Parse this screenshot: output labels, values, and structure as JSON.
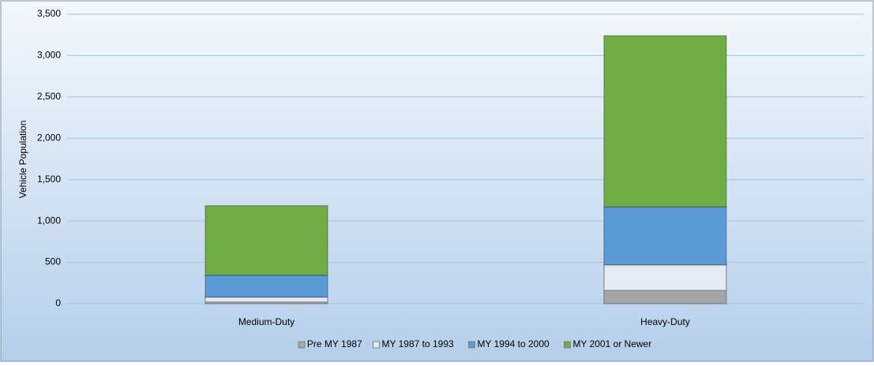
{
  "chart_data": {
    "type": "stacked_bar",
    "y_label": "Vehicle Population",
    "categories": [
      "Medium-Duty",
      "Heavy-Duty"
    ],
    "series": [
      {
        "name": "Pre MY 1987",
        "color": "#a6a6a6",
        "values": [
          20,
          160
        ]
      },
      {
        "name": "MY 1987 to 1993",
        "color": "#e4ebf5",
        "values": [
          60,
          310
        ]
      },
      {
        "name": "MY 1994 to 2000",
        "color": "#5b9bd5",
        "values": [
          265,
          700
        ]
      },
      {
        "name": "MY 2001 or Newer",
        "color": "#70ad47",
        "values": [
          840,
          2070
        ]
      }
    ],
    "ylim": [
      0,
      3500
    ],
    "yticks": [
      0,
      500,
      {
        "value": 1000,
        "label": "1,000"
      },
      {
        "value": 1500,
        "label": "1,500"
      },
      {
        "value": 2000,
        "label": "2,000"
      },
      {
        "value": 2500,
        "label": "2,500"
      },
      {
        "value": 3000,
        "label": "3,000"
      },
      {
        "value": 3500,
        "label": "3,500"
      }
    ],
    "grid": true,
    "legend": "bottom"
  }
}
